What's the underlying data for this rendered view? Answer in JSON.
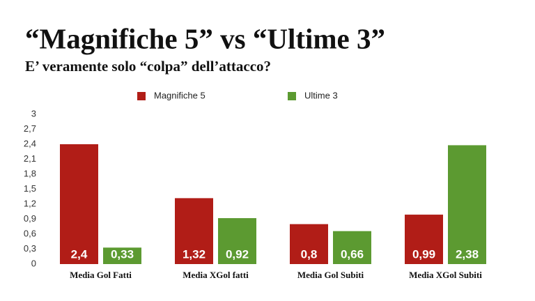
{
  "chart_data": {
    "type": "bar",
    "title": "“Magnifiche 5” vs “Ultime 3”",
    "subtitle": "E’ veramente solo “colpa” dell’attacco?",
    "categories": [
      "Media Gol Fatti",
      "Media XGol fatti",
      "Media Gol Subiti",
      "Media XGol Subiti"
    ],
    "series": [
      {
        "name": "Magnifiche 5",
        "color": "#b11d17",
        "values": [
          2.4,
          1.32,
          0.8,
          0.99
        ],
        "value_labels": [
          "2,4",
          "1,32",
          "0,8",
          "0,99"
        ]
      },
      {
        "name": "Ultime 3",
        "color": "#5c9a31",
        "values": [
          0.33,
          0.92,
          0.66,
          2.38
        ],
        "value_labels": [
          "0,33",
          "0,92",
          "0,66",
          "2,38"
        ]
      }
    ],
    "ylim": [
      0,
      3
    ],
    "yticks": [
      0,
      {
        "value": 0.3,
        "label": "0,3"
      },
      {
        "value": 0.6,
        "label": "0,6"
      },
      {
        "value": 0.9,
        "label": "0,9"
      },
      {
        "value": 1.2,
        "label": "1,2"
      },
      {
        "value": 1.5,
        "label": "1,5"
      },
      {
        "value": 1.8,
        "label": "1,8"
      },
      {
        "value": 2.1,
        "label": "2,1"
      },
      {
        "value": 2.4,
        "label": "2,4"
      },
      {
        "value": 2.7,
        "label": "2,7"
      },
      3
    ],
    "grid": false,
    "legend": "top"
  }
}
